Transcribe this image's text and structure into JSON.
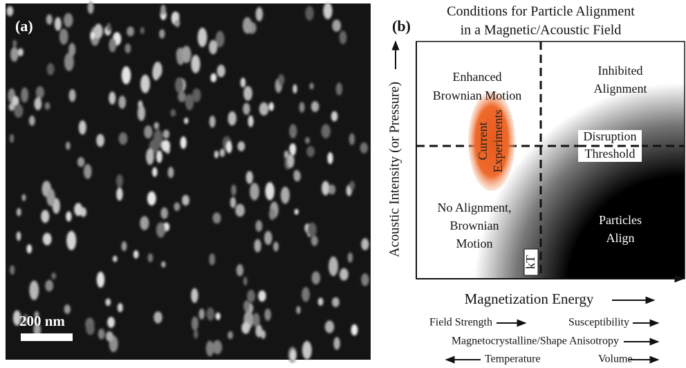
{
  "panel_a": {
    "label": "(a)",
    "scale_bar": "200 nm"
  },
  "panel_b": {
    "label": "(b)",
    "title": [
      "Conditions for Particle Alignment",
      "in a Magnetic/Acoustic Field"
    ],
    "y_axis_label": "Acoustic Intensity (or Pressure)",
    "x_axis_label": "Magnetization Energy",
    "regions": {
      "top_left": [
        "Enhanced",
        "Brownian Motion"
      ],
      "top_right": [
        "Inhibited",
        "Alignment"
      ],
      "bottom_left": [
        "No Alignment,",
        "Brownian",
        "Motion"
      ],
      "bottom_right": [
        "Particles",
        "Align"
      ]
    },
    "threshold_label": [
      "Disruption",
      "Threshold"
    ],
    "kT_label": "kT",
    "current_experiments": [
      "Current",
      "Experiments"
    ],
    "factors": [
      "Field Strength",
      "Susceptibility",
      "Magnetocrystalline/Shape Anisotropy",
      "Temperature",
      "Volume"
    ]
  }
}
